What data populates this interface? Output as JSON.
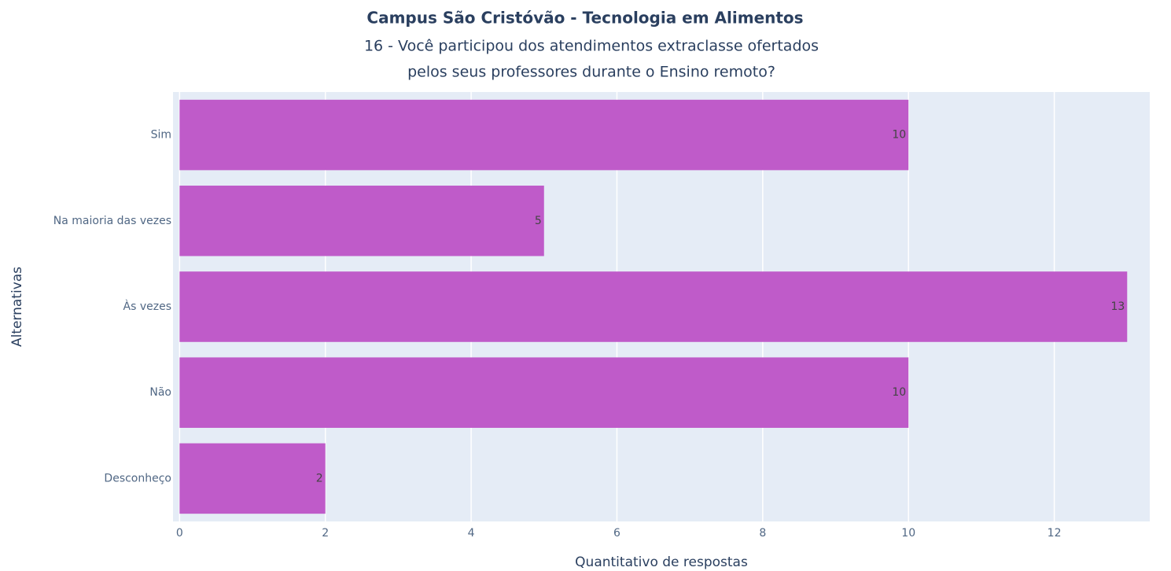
{
  "chart_data": {
    "type": "barh",
    "title": "Campus São Cristóvão - Tecnologia em Alimentos",
    "subtitle": [
      "16 - Você participou dos atendimentos extraclasse ofertados",
      "pelos seus professores durante o Ensino remoto?"
    ],
    "xlabel": "Quantitativo de respostas",
    "ylabel": "Alternativas",
    "categories": [
      "Sim",
      "Na maioria das vezes",
      "Às vezes",
      "Não",
      "Desconheço"
    ],
    "values": [
      10,
      5,
      13,
      10,
      2
    ],
    "color": "#bf5bc9",
    "xlim": [
      -0.09,
      13.31
    ],
    "xticks": [
      0,
      2,
      4,
      6,
      8,
      10,
      12
    ],
    "grid": true
  }
}
